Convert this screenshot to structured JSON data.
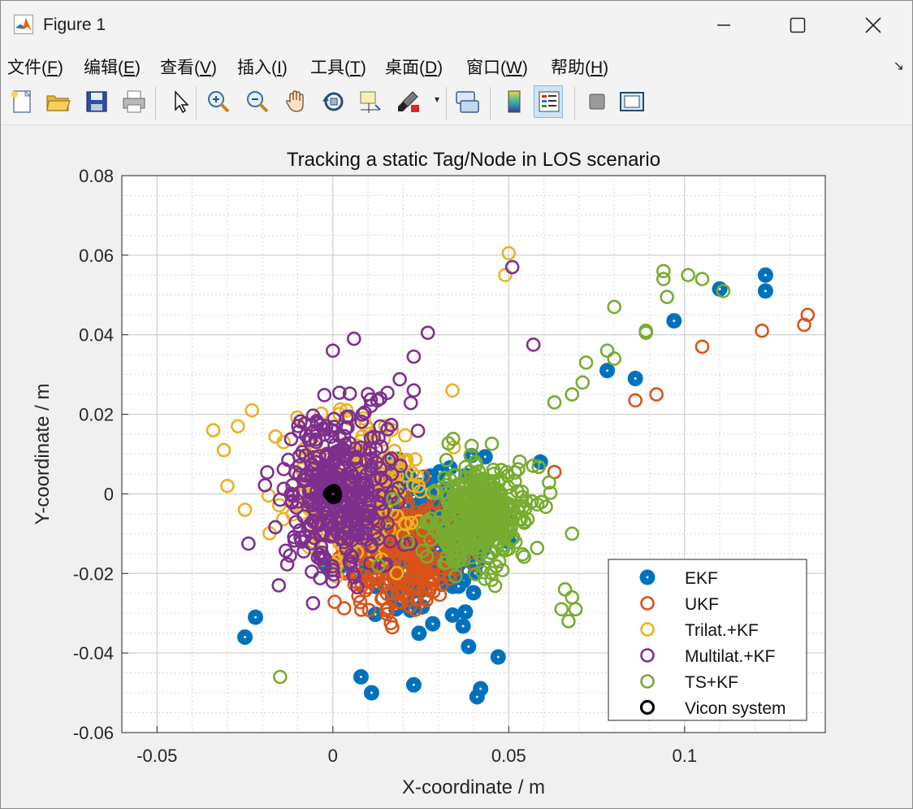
{
  "window": {
    "title": "Figure 1",
    "icon": "matlab-icon"
  },
  "menu": [
    {
      "pre": "文件(",
      "key": "F",
      "post": ")"
    },
    {
      "pre": "编辑(",
      "key": "E",
      "post": ")"
    },
    {
      "pre": "查看(",
      "key": "V",
      "post": ")"
    },
    {
      "pre": "插入(",
      "key": "I",
      "post": ")"
    },
    {
      "pre": "工具(",
      "key": "T",
      "post": ")"
    },
    {
      "pre": "桌面(",
      "key": "D",
      "post": ")"
    },
    {
      "pre": "窗口(",
      "key": "W",
      "post": ")"
    },
    {
      "pre": "帮助(",
      "key": "H",
      "post": ")"
    }
  ],
  "toolbar": [
    "new-figure-icon",
    "open-file-icon",
    "save-icon",
    "print-icon",
    "edit-plot-arrow-icon",
    "zoom-in-icon",
    "zoom-out-icon",
    "pan-hand-icon",
    "rotate-3d-icon",
    "data-cursor-icon",
    "brush-icon",
    "link-plot-icon",
    "colorbar-icon",
    "legend-icon",
    "hide-plot-tools-icon",
    "show-plot-tools-icon"
  ],
  "colors": {
    "ekf": "#0072BD",
    "ukf": "#D95319",
    "trilat": "#EDB120",
    "multilat": "#7E2F8E",
    "ts": "#77AC30",
    "vicon": "#000000"
  },
  "chart_data": {
    "type": "scatter",
    "title": "Tracking a static Tag/Node in LOS scenario",
    "xlabel": "X-coordinate / m",
    "ylabel": "Y-coordinate / m",
    "xlim": [
      -0.06,
      0.14
    ],
    "ylim": [
      -0.06,
      0.08
    ],
    "xticks": [
      "-0.05",
      "0",
      "0.05",
      "0.1"
    ],
    "xtick_values": [
      -0.05,
      0,
      0.05,
      0.1
    ],
    "yticks": [
      "0.08",
      "0.06",
      "0.04",
      "0.02",
      "0",
      "-0.02",
      "-0.04",
      "-0.06"
    ],
    "ytick_values": [
      0.08,
      0.06,
      0.04,
      0.02,
      0,
      -0.02,
      -0.04,
      -0.06
    ],
    "grid": true,
    "minor_grid": true,
    "legend_position": "bottom-right",
    "series": [
      {
        "name": "EKF",
        "color": "#0072BD",
        "marker": "filled-ring",
        "cluster": {
          "center": [
            0.025,
            -0.01
          ],
          "spread": [
            0.018,
            0.016
          ],
          "count": 260
        },
        "points": [
          [
            0.123,
            0.055
          ],
          [
            0.123,
            0.051
          ],
          [
            0.11,
            0.0515
          ],
          [
            0.097,
            0.0435
          ],
          [
            0.078,
            0.031
          ],
          [
            0.086,
            0.029
          ],
          [
            0.059,
            0.008
          ],
          [
            -0.025,
            -0.036
          ],
          [
            -0.022,
            -0.031
          ],
          [
            0.011,
            -0.05
          ],
          [
            0.041,
            -0.051
          ],
          [
            0.042,
            -0.049
          ],
          [
            0.008,
            -0.046
          ],
          [
            0.023,
            -0.048
          ],
          [
            0.047,
            -0.041
          ]
        ]
      },
      {
        "name": "UKF",
        "color": "#D95319",
        "marker": "ring",
        "cluster": {
          "center": [
            0.02,
            -0.015
          ],
          "spread": [
            0.016,
            0.014
          ],
          "count": 320
        },
        "points": [
          [
            0.135,
            0.045
          ],
          [
            0.134,
            0.0425
          ],
          [
            0.122,
            0.041
          ],
          [
            0.105,
            0.037
          ],
          [
            0.092,
            0.025
          ],
          [
            0.086,
            0.0235
          ],
          [
            0.063,
            0.0055
          ]
        ]
      },
      {
        "name": "Trilat.+KF",
        "color": "#EDB120",
        "marker": "ring",
        "cluster": {
          "center": [
            0.005,
            0.0
          ],
          "spread": [
            0.018,
            0.015
          ],
          "count": 260
        },
        "points": [
          [
            0.05,
            0.0605
          ],
          [
            0.049,
            0.055
          ],
          [
            0.034,
            0.026
          ],
          [
            -0.034,
            0.016
          ],
          [
            -0.031,
            0.011
          ],
          [
            -0.03,
            0.002
          ],
          [
            -0.027,
            0.017
          ],
          [
            -0.025,
            -0.004
          ],
          [
            -0.023,
            0.021
          ]
        ]
      },
      {
        "name": "Multilat.+KF",
        "color": "#7E2F8E",
        "marker": "ring",
        "cluster": {
          "center": [
            0.003,
            0.0
          ],
          "spread": [
            0.014,
            0.018
          ],
          "count": 380
        },
        "points": [
          [
            0.051,
            0.057
          ],
          [
            0.057,
            0.0375
          ],
          [
            0.027,
            0.0405
          ],
          [
            0.023,
            0.0345
          ],
          [
            0.023,
            0.026
          ],
          [
            0.006,
            0.039
          ],
          [
            0.0,
            0.036
          ],
          [
            -0.024,
            -0.0125
          ]
        ]
      },
      {
        "name": "TS+KF",
        "color": "#77AC30",
        "marker": "ring",
        "cluster": {
          "center": [
            0.042,
            -0.005
          ],
          "spread": [
            0.013,
            0.012
          ],
          "count": 380
        },
        "points": [
          [
            0.094,
            0.056
          ],
          [
            0.094,
            0.054
          ],
          [
            0.101,
            0.055
          ],
          [
            0.105,
            0.054
          ],
          [
            0.111,
            0.051
          ],
          [
            0.095,
            0.0495
          ],
          [
            0.08,
            0.047
          ],
          [
            0.089,
            0.041
          ],
          [
            0.089,
            0.0405
          ],
          [
            0.078,
            0.036
          ],
          [
            0.08,
            0.034
          ],
          [
            0.072,
            0.033
          ],
          [
            0.071,
            0.028
          ],
          [
            0.068,
            0.025
          ],
          [
            0.063,
            0.023
          ],
          [
            0.066,
            -0.024
          ],
          [
            0.068,
            -0.026
          ],
          [
            0.065,
            -0.029
          ],
          [
            0.069,
            -0.029
          ],
          [
            0.067,
            -0.032
          ],
          [
            0.068,
            -0.01
          ],
          [
            -0.015,
            -0.046
          ],
          [
            0.013,
            -0.018
          ]
        ]
      },
      {
        "name": "Vicon system",
        "color": "#000000",
        "marker": "ring",
        "cluster": {
          "center": [
            0.0,
            0.0
          ],
          "spread": [
            0.0007,
            0.0007
          ],
          "count": 40
        },
        "points": []
      }
    ]
  }
}
